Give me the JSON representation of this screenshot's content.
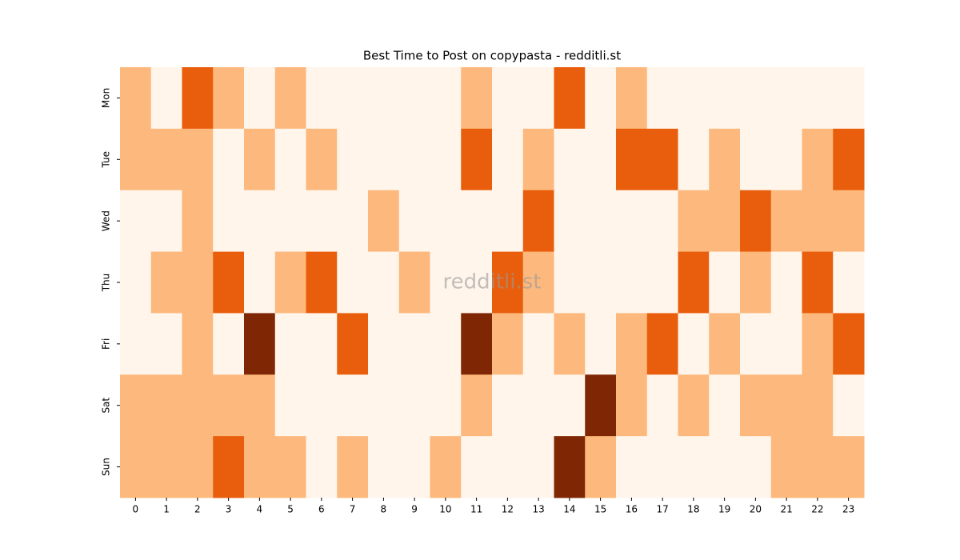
{
  "chart_data": {
    "type": "heatmap",
    "title": "Best Time to Post on copypasta - redditli.st",
    "watermark": "redditli.st",
    "x": [
      0,
      1,
      2,
      3,
      4,
      5,
      6,
      7,
      8,
      9,
      10,
      11,
      12,
      13,
      14,
      15,
      16,
      17,
      18,
      19,
      20,
      21,
      22,
      23
    ],
    "categories": [
      "Mon",
      "Tue",
      "Wed",
      "Thu",
      "Fri",
      "Sat",
      "Sun"
    ],
    "colors": [
      "#fff5eb",
      "#fdb97d",
      "#e95e0d",
      "#7f2704"
    ],
    "values": [
      [
        1,
        0,
        2,
        1,
        0,
        1,
        0,
        0,
        0,
        0,
        0,
        1,
        0,
        0,
        2,
        0,
        1,
        0,
        0,
        0,
        0,
        0,
        0,
        0
      ],
      [
        1,
        1,
        1,
        0,
        1,
        0,
        1,
        0,
        0,
        0,
        0,
        2,
        0,
        1,
        0,
        0,
        2,
        2,
        0,
        1,
        0,
        0,
        1,
        2
      ],
      [
        0,
        0,
        1,
        0,
        0,
        0,
        0,
        0,
        1,
        0,
        0,
        0,
        0,
        2,
        0,
        0,
        0,
        0,
        1,
        1,
        2,
        1,
        1,
        1
      ],
      [
        0,
        1,
        1,
        2,
        0,
        1,
        2,
        0,
        0,
        1,
        0,
        0,
        2,
        1,
        0,
        0,
        0,
        0,
        2,
        0,
        1,
        0,
        2,
        0
      ],
      [
        0,
        0,
        1,
        0,
        3,
        0,
        0,
        2,
        0,
        0,
        0,
        3,
        1,
        0,
        1,
        0,
        1,
        2,
        0,
        1,
        0,
        0,
        1,
        2
      ],
      [
        1,
        1,
        1,
        1,
        1,
        0,
        0,
        0,
        0,
        0,
        0,
        1,
        0,
        0,
        0,
        3,
        1,
        0,
        1,
        0,
        1,
        1,
        1,
        0
      ],
      [
        1,
        1,
        1,
        2,
        1,
        1,
        0,
        1,
        0,
        0,
        1,
        0,
        0,
        0,
        3,
        1,
        0,
        0,
        0,
        0,
        0,
        1,
        1,
        1
      ]
    ]
  }
}
